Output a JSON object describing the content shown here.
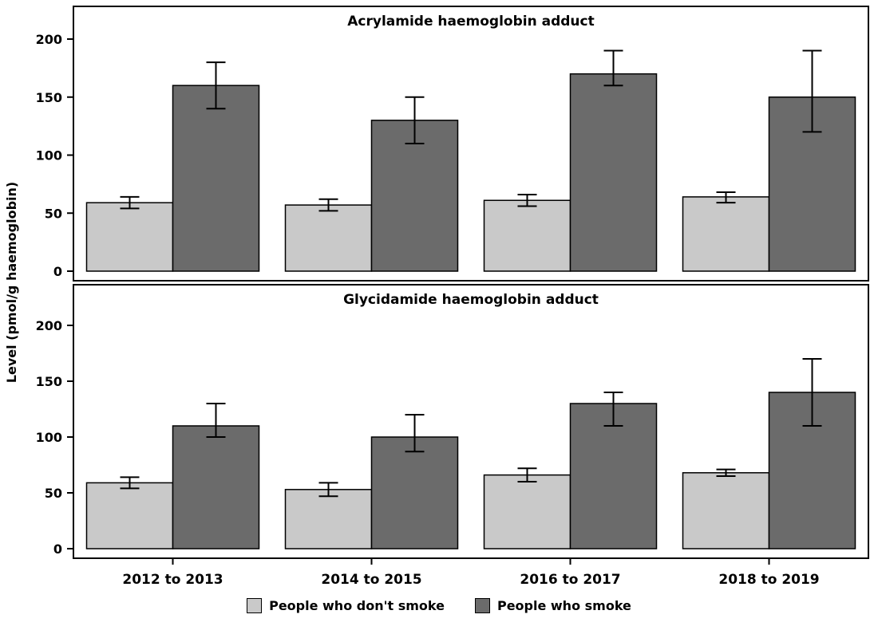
{
  "ylabel": "Level (pmol/g haemoglobin)",
  "legend": [
    {
      "label": "People who don't smoke",
      "color": "#c9c9c9"
    },
    {
      "label": "People who smoke",
      "color": "#6b6b6b"
    }
  ],
  "colors": {
    "nonsmoker_fill": "#c9c9c9",
    "smoker_fill": "#6b6b6b",
    "axis": "#000000",
    "background": "#ffffff"
  },
  "chart_data": [
    {
      "type": "bar",
      "panel_title": "Acrylamide haemoglobin adduct",
      "categories": [
        "2012 to 2013",
        "2014 to 2015",
        "2016 to 2017",
        "2018 to 2019"
      ],
      "series": [
        {
          "name": "People who don't smoke",
          "values": [
            59,
            57,
            61,
            64
          ],
          "err_low": [
            54,
            52,
            56,
            59
          ],
          "err_high": [
            64,
            62,
            66,
            68
          ]
        },
        {
          "name": "People who smoke",
          "values": [
            160,
            130,
            170,
            150
          ],
          "err_low": [
            140,
            110,
            160,
            120
          ],
          "err_high": [
            180,
            150,
            190,
            190
          ]
        }
      ],
      "ylim": [
        0,
        215
      ],
      "yticks": [
        0,
        50,
        100,
        150,
        200
      ],
      "xlabel": "",
      "ylabel": "Level (pmol/g haemoglobin)",
      "legend_position": "bottom",
      "grid": false
    },
    {
      "type": "bar",
      "panel_title": "Glycidamide haemoglobin adduct",
      "categories": [
        "2012 to 2013",
        "2014 to 2015",
        "2016 to 2017",
        "2018 to 2019"
      ],
      "series": [
        {
          "name": "People who don't smoke",
          "values": [
            59,
            53,
            66,
            68
          ],
          "err_low": [
            54,
            47,
            60,
            65
          ],
          "err_high": [
            64,
            59,
            72,
            71
          ]
        },
        {
          "name": "People who smoke",
          "values": [
            110,
            100,
            130,
            140
          ],
          "err_low": [
            100,
            87,
            110,
            110
          ],
          "err_high": [
            130,
            120,
            140,
            170
          ]
        }
      ],
      "ylim": [
        0,
        215
      ],
      "yticks": [
        0,
        50,
        100,
        150,
        200
      ],
      "xlabel": "",
      "ylabel": "Level (pmol/g haemoglobin)",
      "legend_position": "bottom",
      "grid": false
    }
  ]
}
